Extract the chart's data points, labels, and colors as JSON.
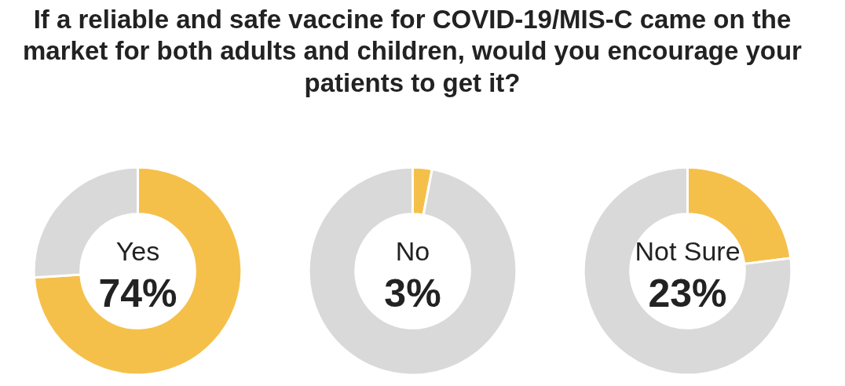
{
  "chart_data": [
    {
      "type": "donut",
      "title": "If a reliable and safe vaccine for COVID-19/MIS-C came on the market for both adults and children, would you encourage your patients to get it?",
      "categories": [
        "Yes",
        null
      ],
      "values": [
        74,
        26
      ],
      "colors": [
        "#f5c04a",
        "#d9d9d9"
      ],
      "value_labels": [
        "74%",
        null
      ]
    },
    {
      "type": "donut",
      "categories": [
        "No",
        null
      ],
      "values": [
        3,
        97
      ],
      "colors": [
        "#f5c04a",
        "#d9d9d9"
      ],
      "value_labels": [
        "3%",
        null
      ]
    },
    {
      "type": "donut",
      "categories": [
        "Not Sure",
        null
      ],
      "values": [
        23,
        77
      ],
      "colors": [
        "#f5c04a",
        "#d9d9d9"
      ],
      "value_labels": [
        "23%",
        null
      ]
    }
  ]
}
